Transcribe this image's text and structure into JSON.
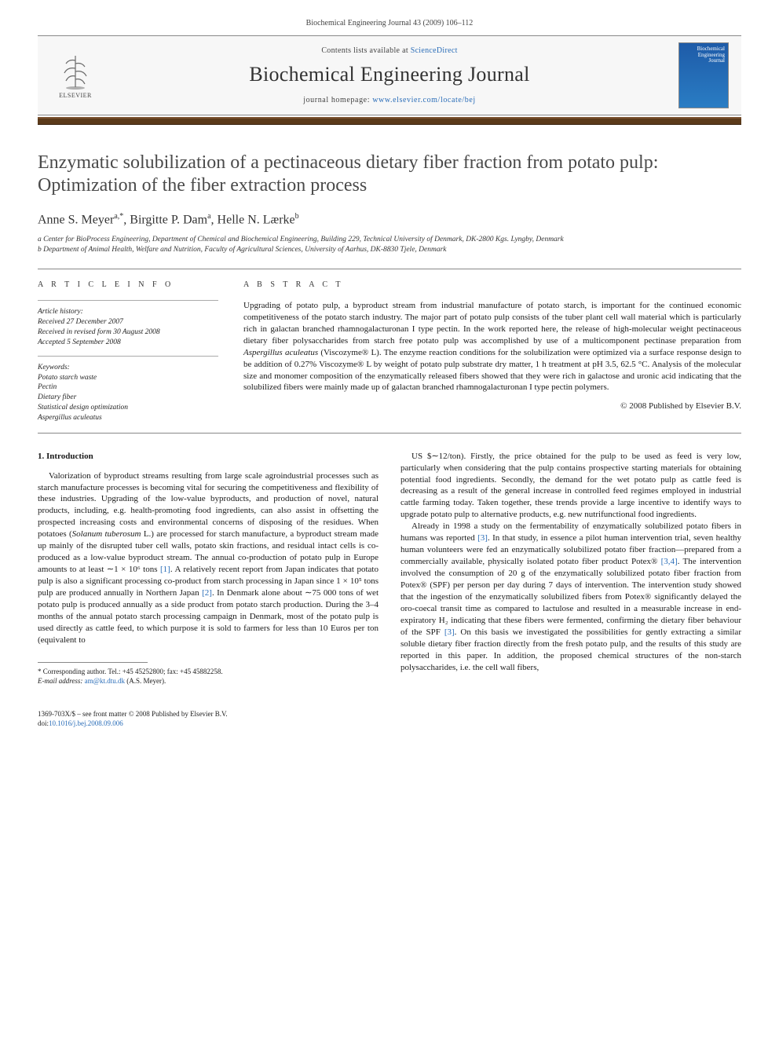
{
  "colors": {
    "background": "#ffffff",
    "text": "#1a1a1a",
    "muted": "#444444",
    "link": "#2a6db8",
    "accent_bar": "#5b3a1a",
    "rule": "#888888",
    "masthead_bg": "#f7f7f7",
    "cover_blue_top": "#1e5ba8",
    "cover_blue_bottom": "#2a7dc4"
  },
  "typography": {
    "body_font": "Georgia, 'Times New Roman', serif",
    "article_title_pt": 24,
    "journal_title_pt": 26,
    "authors_pt": 16,
    "abstract_pt": 11,
    "body_pt": 11,
    "small_pt": 9.5
  },
  "header": {
    "citation": "Biochemical Engineering Journal 43 (2009) 106–112",
    "publisher": "ELSEVIER",
    "contents_prefix": "Contents lists available at ",
    "contents_link": "ScienceDirect",
    "journal": "Biochemical Engineering Journal",
    "homepage_prefix": "journal homepage: ",
    "homepage_url": "www.elsevier.com/locate/bej",
    "cover_title": "Biochemical Engineering Journal"
  },
  "article": {
    "title": "Enzymatic solubilization of a pectinaceous dietary fiber fraction from potato pulp: Optimization of the fiber extraction process",
    "authors_html": "Anne S. Meyer<sup>a,*</sup>, Birgitte P. Dam<sup>a</sup>, Helle N. Lærke<sup>b</sup>",
    "affiliations": {
      "a": "a Center for BioProcess Engineering, Department of Chemical and Biochemical Engineering, Building 229, Technical University of Denmark, DK-2800 Kgs. Lyngby, Denmark",
      "b": "b Department of Animal Health, Welfare and Nutrition, Faculty of Agricultural Sciences, University of Aarhus, DK-8830 Tjele, Denmark"
    }
  },
  "articleinfo": {
    "heading": "A R T I C L E   I N F O",
    "history_label": "Article history:",
    "history": [
      "Received 27 December 2007",
      "Received in revised form 30 August 2008",
      "Accepted 5 September 2008"
    ],
    "keywords_label": "Keywords:",
    "keywords": [
      "Potato starch waste",
      "Pectin",
      "Dietary fiber",
      "Statistical design optimization",
      "Aspergillus aculeatus"
    ]
  },
  "abstract": {
    "heading": "A B S T R A C T",
    "text": "Upgrading of potato pulp, a byproduct stream from industrial manufacture of potato starch, is important for the continued economic competitiveness of the potato starch industry. The major part of potato pulp consists of the tuber plant cell wall material which is particularly rich in galactan branched rhamnogalacturonan I type pectin. In the work reported here, the release of high-molecular weight pectinaceous dietary fiber polysaccharides from starch free potato pulp was accomplished by use of a multicomponent pectinase preparation from Aspergillus aculeatus (Viscozyme® L). The enzyme reaction conditions for the solubilization were optimized via a surface response design to be addition of 0.27% Viscozyme® L by weight of potato pulp substrate dry matter, 1 h treatment at pH 3.5, 62.5 °C. Analysis of the molecular size and monomer composition of the enzymatically released fibers showed that they were rich in galactose and uronic acid indicating that the solubilized fibers were mainly made up of galactan branched rhamnogalacturonan I type pectin polymers.",
    "copyright": "© 2008 Published by Elsevier B.V."
  },
  "section": {
    "heading": "1.  Introduction",
    "col1_p1": "Valorization of byproduct streams resulting from large scale agroindustrial processes such as starch manufacture processes is becoming vital for securing the competitiveness and flexibility of these industries. Upgrading of the low-value byproducts, and production of novel, natural products, including, e.g. health-promoting food ingredients, can also assist in offsetting the prospected increasing costs and environmental concerns of disposing of the residues. When potatoes (Solanum tuberosum L.) are processed for starch manufacture, a byproduct stream made up mainly of the disrupted tuber cell walls, potato skin fractions, and residual intact cells is co-produced as a low-value byproduct stream. The annual co-production of potato pulp in Europe amounts to at least ∼1 × 10⁶ tons [1]. A relatively recent report from Japan indicates that potato pulp is also a significant processing co-product from starch processing in Japan since 1 × 10⁵ tons pulp are produced annually in Northern Japan [2]. In Denmark alone about ∼75 000 tons of wet potato pulp is produced annually as a side product from potato starch production. During the 3–4 months of the annual potato starch processing campaign in Denmark, most of the potato pulp is used directly as cattle feed, to which purpose it is sold to farmers for less than 10 Euros per ton (equivalent to",
    "col2_p1": "US $∼12/ton). Firstly, the price obtained for the pulp to be used as feed is very low, particularly when considering that the pulp contains prospective starting materials for obtaining potential food ingredients. Secondly, the demand for the wet potato pulp as cattle feed is decreasing as a result of the general increase in controlled feed regimes employed in industrial cattle farming today. Taken together, these trends provide a large incentive to identify ways to upgrade potato pulp to alternative products, e.g. new nutrifunctional food ingredients.",
    "col2_p2": "Already in 1998 a study on the fermentability of enzymatically solubilized potato fibers in humans was reported [3]. In that study, in essence a pilot human intervention trial, seven healthy human volunteers were fed an enzymatically solubilized potato fiber fraction—prepared from a commercially available, physically isolated potato fiber product Potex® [3,4]. The intervention involved the consumption of 20 g of the enzymatically solubilized potato fiber fraction from Potex® (SPF) per person per day during 7 days of intervention. The intervention study showed that the ingestion of the enzymatically solubilized fibers from Potex® significantly delayed the oro-coecal transit time as compared to lactulose and resulted in a measurable increase in end-expiratory H₂ indicating that these fibers were fermented, confirming the dietary fiber behaviour of the SPF [3]. On this basis we investigated the possibilities for gently extracting a similar soluble dietary fiber fraction directly from the fresh potato pulp, and the results of this study are reported in this paper. In addition, the proposed chemical structures of the non-starch polysaccharides, i.e. the cell wall fibers,"
  },
  "footnote": {
    "corr": "* Corresponding author. Tel.: +45 45252800; fax: +45 45882258.",
    "email_label": "E-mail address: ",
    "email": "am@kt.dtu.dk",
    "email_suffix": " (A.S. Meyer)."
  },
  "footer": {
    "issn_line": "1369-703X/$ – see front matter © 2008 Published by Elsevier B.V.",
    "doi_prefix": "doi:",
    "doi": "10.1016/j.bej.2008.09.006"
  }
}
